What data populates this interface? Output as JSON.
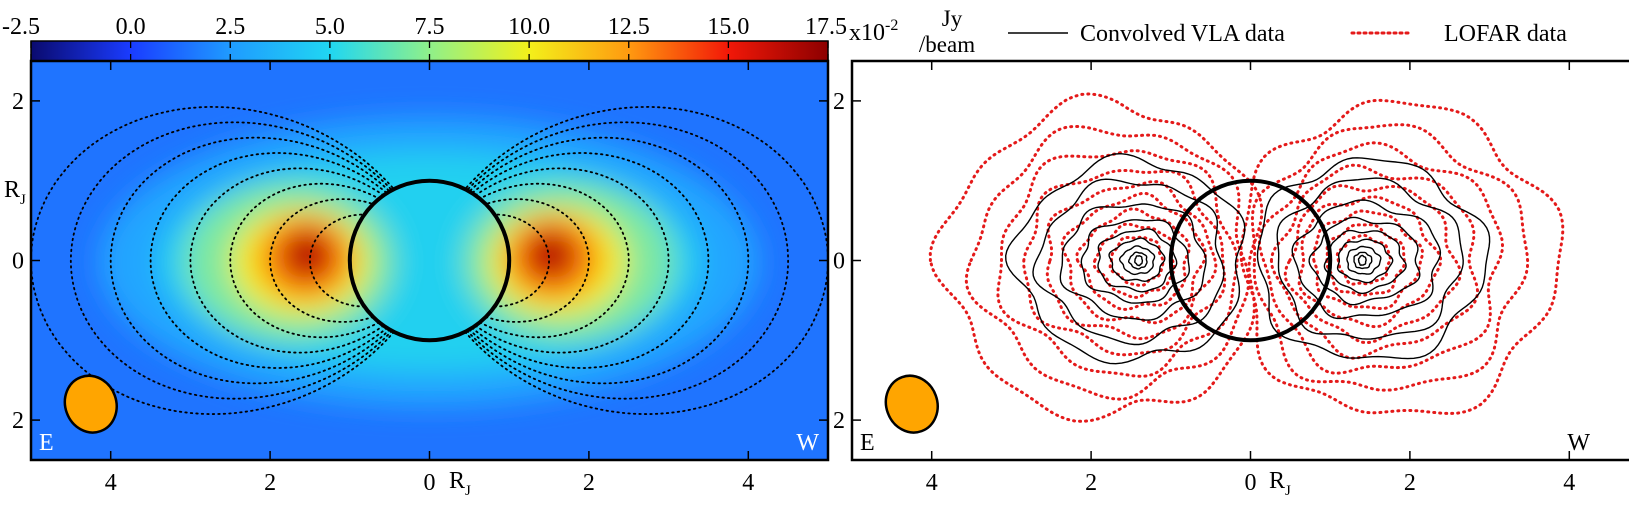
{
  "chart_data": [
    {
      "type": "heatmap",
      "colorbar": {
        "ticks": [
          "-2.5",
          "0.0",
          "2.5",
          "5.0",
          "7.5",
          "10.0",
          "12.5",
          "15.0",
          "17.5"
        ],
        "tick_values": [
          -2.5,
          0.0,
          2.5,
          5.0,
          7.5,
          10.0,
          12.5,
          15.0,
          17.5
        ],
        "range": [
          -2.5,
          17.5
        ],
        "scale_label": "x10",
        "scale_exp": "-2",
        "unit_top": "Jy",
        "unit_bottom": "/beam",
        "colors": [
          "#0a0a6e",
          "#1a3cff",
          "#1f9bff",
          "#20d6f2",
          "#8ff08a",
          "#f3f01a",
          "#ff9a10",
          "#f21808",
          "#8c0000"
        ]
      },
      "xlim": [
        5,
        -5
      ],
      "ylim": [
        -2.5,
        2.5
      ],
      "x_ticks": [
        {
          "value": 4,
          "label": "4"
        },
        {
          "value": 2,
          "label": "2"
        },
        {
          "value": 0,
          "label": "0"
        },
        {
          "value": -2,
          "label": "2"
        },
        {
          "value": -4,
          "label": "4"
        }
      ],
      "y_ticks": [
        {
          "value": 2,
          "label": "2"
        },
        {
          "value": 0,
          "label": "0"
        },
        {
          "value": -2,
          "label": "2"
        }
      ],
      "xlabel": "R",
      "xlabel_sub": "J",
      "ylabel": "R",
      "ylabel_sub": "J",
      "corner_left": "E",
      "corner_right": "W",
      "planet_radius": 1.0,
      "beam_ellipse": {
        "cx": 4.25,
        "cy": -1.8,
        "rx": 0.32,
        "ry": 0.36,
        "color": "#ffa500"
      },
      "field_lines_L": [
        1.5,
        2.0,
        2.5,
        3.0,
        3.5,
        4.0,
        4.5,
        5.0
      ],
      "emission_peaks": [
        {
          "x": 1.5,
          "y": 0.0,
          "amplitude": 17.0
        },
        {
          "x": -1.5,
          "y": 0.0,
          "amplitude": 17.0
        }
      ]
    },
    {
      "type": "contour",
      "legend": {
        "placement": "top",
        "entries": [
          {
            "label": "Convolved VLA data",
            "style": "solid",
            "color": "#000000"
          },
          {
            "label": "LOFAR data",
            "style": "dotted",
            "color": "#e41a1a"
          }
        ]
      },
      "xlim": [
        5,
        -5
      ],
      "ylim": [
        -2.5,
        2.5
      ],
      "x_ticks": [
        {
          "value": 4,
          "label": "4"
        },
        {
          "value": 2,
          "label": "2"
        },
        {
          "value": 0,
          "label": "0"
        },
        {
          "value": -2,
          "label": "2"
        },
        {
          "value": -4,
          "label": "4"
        }
      ],
      "y_ticks": [
        {
          "value": 2,
          "label": "2"
        },
        {
          "value": 0,
          "label": "0"
        },
        {
          "value": -2,
          "label": "2"
        }
      ],
      "xlabel": "R",
      "xlabel_sub": "J",
      "corner_left": "E",
      "corner_right": "W",
      "planet_radius": 1.0,
      "beam_ellipse": {
        "cx": 4.25,
        "cy": -1.8,
        "rx": 0.32,
        "ry": 0.36,
        "color": "#ffa500"
      },
      "vla_contours": [
        {
          "peak_x": 1.4,
          "rx": 3.1,
          "ry": 1.25
        },
        {
          "peak_x": 1.4,
          "rx": 2.5,
          "ry": 1.0
        },
        {
          "peak_x": 1.4,
          "rx": 1.95,
          "ry": 0.72
        },
        {
          "peak_x": 1.4,
          "rx": 1.45,
          "ry": 0.52
        },
        {
          "peak_x": 1.4,
          "rx": 1.05,
          "ry": 0.38
        },
        {
          "peak_x": 1.4,
          "rx": 0.72,
          "ry": 0.26
        },
        {
          "peak_x": 1.4,
          "rx": 0.45,
          "ry": 0.17
        },
        {
          "peak_x": 1.4,
          "rx": 0.24,
          "ry": 0.1
        },
        {
          "peak_x": 1.4,
          "rx": 0.1,
          "ry": 0.06
        }
      ],
      "lofar_contours": [
        {
          "peak_x": 1.7,
          "rx": 4.3,
          "ry": 1.95
        },
        {
          "peak_x": 1.6,
          "rx": 3.7,
          "ry": 1.65
        },
        {
          "peak_x": 1.55,
          "rx": 3.2,
          "ry": 1.4
        },
        {
          "peak_x": 1.5,
          "rx": 2.7,
          "ry": 1.15
        },
        {
          "peak_x": 1.45,
          "rx": 2.25,
          "ry": 0.95
        },
        {
          "peak_x": 1.4,
          "rx": 1.85,
          "ry": 0.78
        },
        {
          "peak_x": 1.4,
          "rx": 1.45,
          "ry": 0.6
        },
        {
          "peak_x": 1.4,
          "rx": 1.05,
          "ry": 0.44
        },
        {
          "peak_x": 1.4,
          "rx": 0.7,
          "ry": 0.3
        }
      ]
    }
  ]
}
